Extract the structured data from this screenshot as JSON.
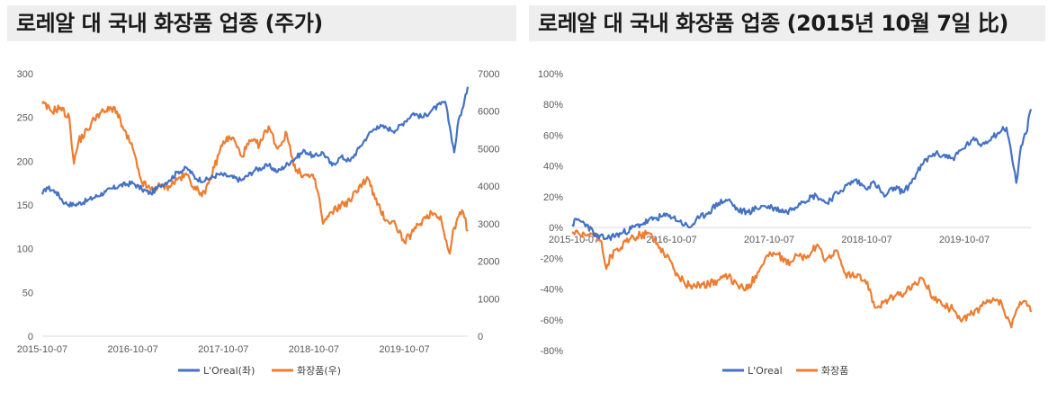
{
  "colors": {
    "loreal": "#4472C4",
    "cosmetics": "#ED7D31",
    "axis": "#d9d9d9",
    "grid": "#d9d9d9"
  },
  "charts": {
    "left": {
      "title": "로레알 대 국내 화장품 업종 (주가)",
      "legend": {
        "loreal": "L'Oreal(좌)",
        "cosmetics": "화장품(우)"
      }
    },
    "right": {
      "title": "로레알 대 국내 화장품 업종 (2015년 10월 7일 比)",
      "legend": {
        "loreal": "L'Oreal",
        "cosmetics": "화장품"
      }
    }
  },
  "chart_data": [
    {
      "type": "line",
      "title": "로레알 대 국내 화장품 업종 (주가)",
      "x_ticks": [
        "2015-10-07",
        "2016-10-07",
        "2017-10-07",
        "2018-10-07",
        "2019-10-07"
      ],
      "y_left_ticks": [
        "0",
        "50",
        "100",
        "150",
        "200",
        "250",
        "300"
      ],
      "y_right_ticks": [
        "0",
        "1000",
        "2000",
        "3000",
        "4000",
        "5000",
        "6000",
        "7000"
      ],
      "ylim_left": [
        0,
        300
      ],
      "ylim_right": [
        0,
        7000
      ],
      "x_range_years": [
        0,
        4.7
      ],
      "series": [
        {
          "name": "L'Oreal(좌)",
          "axis": "left",
          "x": [
            0,
            0.05,
            0.15,
            0.25,
            0.35,
            0.5,
            0.7,
            0.85,
            1.0,
            1.1,
            1.2,
            1.3,
            1.4,
            1.5,
            1.6,
            1.7,
            1.8,
            1.95,
            2.05,
            2.2,
            2.35,
            2.5,
            2.6,
            2.75,
            2.9,
            3.0,
            3.1,
            3.2,
            3.3,
            3.4,
            3.5,
            3.6,
            3.7,
            3.8,
            3.9,
            4.0,
            4.1,
            4.2,
            4.3,
            4.4,
            4.45,
            4.5,
            4.55,
            4.6,
            4.65,
            4.7
          ],
          "values": [
            162,
            170,
            165,
            152,
            150,
            155,
            165,
            172,
            175,
            168,
            163,
            172,
            178,
            188,
            192,
            180,
            178,
            185,
            183,
            178,
            190,
            195,
            188,
            200,
            212,
            205,
            210,
            195,
            205,
            200,
            215,
            230,
            240,
            238,
            235,
            245,
            255,
            250,
            258,
            265,
            268,
            240,
            210,
            248,
            262,
            285
          ]
        },
        {
          "name": "화장품(우)",
          "axis": "right",
          "x": [
            0,
            0.1,
            0.2,
            0.3,
            0.35,
            0.4,
            0.5,
            0.6,
            0.7,
            0.8,
            0.9,
            1.0,
            1.05,
            1.1,
            1.2,
            1.3,
            1.4,
            1.5,
            1.6,
            1.7,
            1.8,
            1.9,
            2.0,
            2.1,
            2.2,
            2.3,
            2.4,
            2.5,
            2.6,
            2.7,
            2.8,
            2.9,
            3.0,
            3.05,
            3.1,
            3.2,
            3.3,
            3.4,
            3.5,
            3.6,
            3.7,
            3.8,
            3.9,
            4.0,
            4.1,
            4.2,
            4.3,
            4.4,
            4.45,
            4.5,
            4.55,
            4.6,
            4.65,
            4.7
          ],
          "values": [
            6200,
            6000,
            6100,
            5800,
            4600,
            5200,
            5500,
            5900,
            6000,
            6100,
            5500,
            5000,
            4500,
            4100,
            3900,
            4000,
            4000,
            4200,
            4300,
            3900,
            3800,
            4500,
            5200,
            5300,
            4800,
            5200,
            5100,
            5600,
            5000,
            5400,
            4400,
            4300,
            4200,
            3800,
            3000,
            3300,
            3500,
            3600,
            4000,
            4200,
            3500,
            3100,
            3000,
            2500,
            2800,
            3100,
            3300,
            3200,
            2600,
            2200,
            2900,
            3200,
            3300,
            2800
          ]
        }
      ]
    },
    {
      "type": "line",
      "title": "로레알 대 국내 화장품 업종 (2015년 10월 7일 比)",
      "x_ticks": [
        "2015-10-07",
        "2016-10-07",
        "2017-10-07",
        "2018-10-07",
        "2019-10-07"
      ],
      "y_ticks": [
        "-80%",
        "-60%",
        "-40%",
        "-20%",
        "0%",
        "20%",
        "40%",
        "60%",
        "80%",
        "100%"
      ],
      "ylim": [
        -80,
        100
      ],
      "x_range_years": [
        0,
        4.7
      ],
      "series": [
        {
          "name": "L'Oreal",
          "x": [
            0,
            0.05,
            0.15,
            0.25,
            0.35,
            0.5,
            0.7,
            0.85,
            1.0,
            1.1,
            1.2,
            1.3,
            1.4,
            1.5,
            1.6,
            1.7,
            1.8,
            1.95,
            2.05,
            2.2,
            2.35,
            2.5,
            2.6,
            2.75,
            2.9,
            3.0,
            3.1,
            3.2,
            3.3,
            3.4,
            3.5,
            3.6,
            3.7,
            3.8,
            3.9,
            4.0,
            4.1,
            4.2,
            4.3,
            4.4,
            4.45,
            4.5,
            4.55,
            4.6,
            4.65,
            4.7
          ],
          "values": [
            2,
            5,
            2,
            -6,
            -7,
            -4,
            2,
            6,
            8,
            4,
            0,
            6,
            10,
            16,
            18,
            11,
            10,
            14,
            13,
            10,
            17,
            21,
            16,
            24,
            31,
            26,
            29,
            20,
            26,
            23,
            32,
            42,
            48,
            47,
            45,
            51,
            57,
            54,
            59,
            63,
            65,
            48,
            29,
            53,
            61,
            77
          ]
        },
        {
          "name": "화장품",
          "x": [
            0,
            0.1,
            0.2,
            0.3,
            0.35,
            0.4,
            0.5,
            0.6,
            0.7,
            0.8,
            0.9,
            1.0,
            1.05,
            1.1,
            1.2,
            1.3,
            1.4,
            1.5,
            1.6,
            1.7,
            1.8,
            1.9,
            2.0,
            2.1,
            2.2,
            2.3,
            2.4,
            2.5,
            2.6,
            2.7,
            2.8,
            2.9,
            3.0,
            3.05,
            3.1,
            3.2,
            3.3,
            3.4,
            3.5,
            3.6,
            3.7,
            3.8,
            3.9,
            4.0,
            4.1,
            4.2,
            4.3,
            4.4,
            4.45,
            4.5,
            4.55,
            4.6,
            4.65,
            4.7
          ],
          "values": [
            -3,
            -6,
            -4,
            -9,
            -27,
            -18,
            -13,
            -7,
            -5,
            -4,
            -13,
            -21,
            -28,
            -33,
            -38,
            -37,
            -37,
            -34,
            -32,
            -38,
            -40,
            -29,
            -18,
            -17,
            -24,
            -18,
            -20,
            -12,
            -21,
            -15,
            -30,
            -32,
            -34,
            -40,
            -52,
            -48,
            -45,
            -43,
            -37,
            -34,
            -45,
            -51,
            -53,
            -60,
            -56,
            -51,
            -48,
            -49,
            -59,
            -65,
            -54,
            -50,
            -48,
            -55
          ]
        }
      ]
    }
  ]
}
